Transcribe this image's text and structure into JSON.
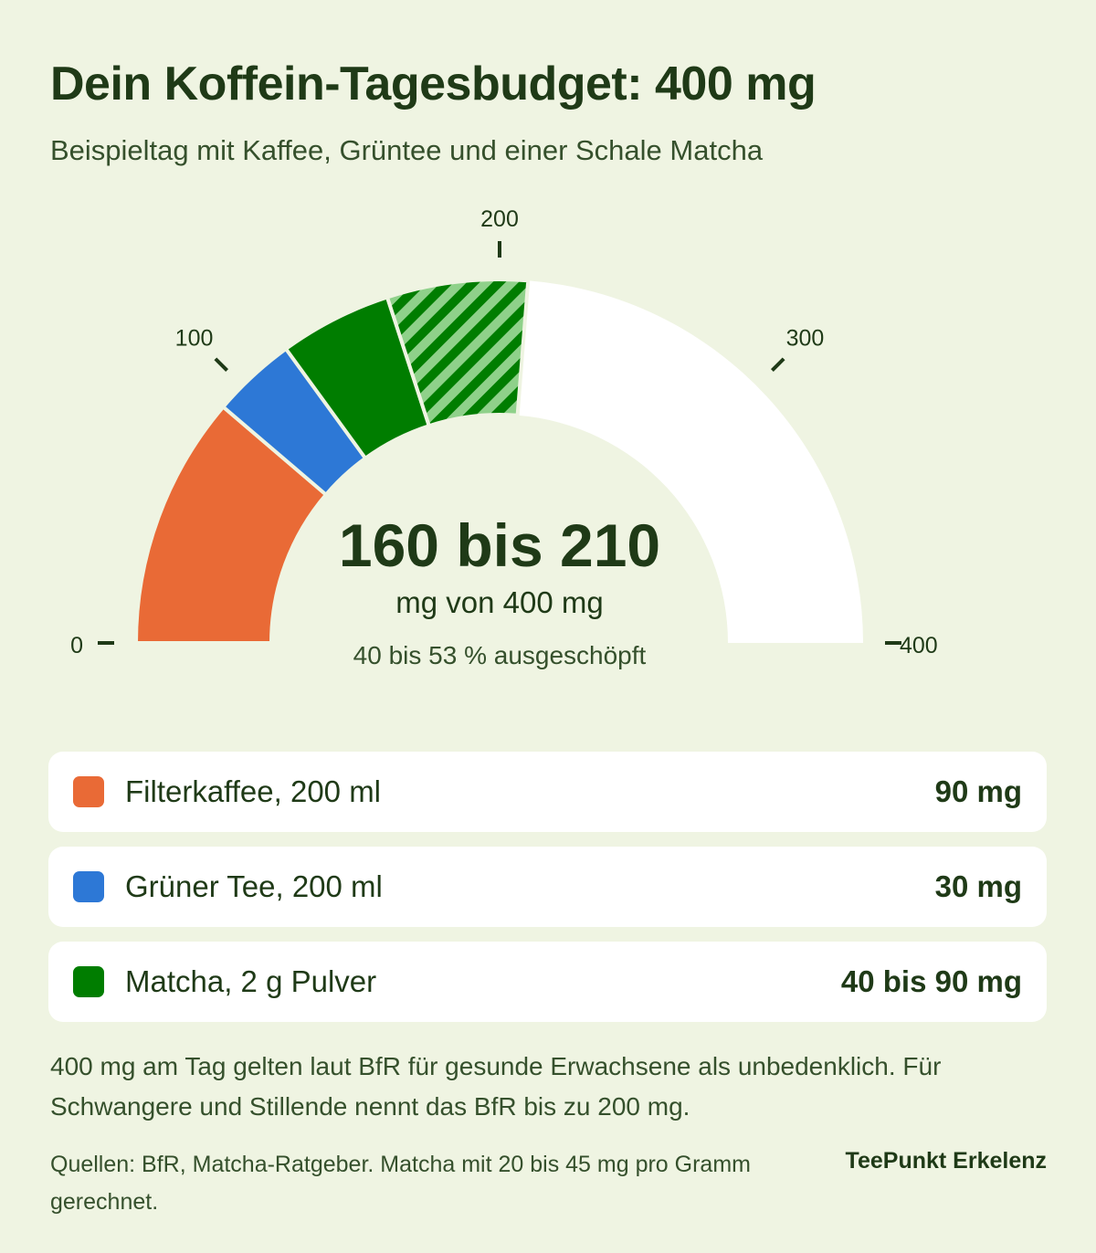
{
  "header": {
    "title": "Dein Koffein-Tagesbudget: 400 mg",
    "subtitle": "Beispieltag mit Kaffee, Grüntee und einer Schale Matcha"
  },
  "chart_data": {
    "type": "gauge",
    "range": [
      0,
      400
    ],
    "ticks": [
      {
        "value": 0,
        "label": "0"
      },
      {
        "value": 100,
        "label": "100"
      },
      {
        "value": 200,
        "label": "200"
      },
      {
        "value": 300,
        "label": "300"
      },
      {
        "value": 400,
        "label": "400"
      }
    ],
    "segments": [
      {
        "name": "Filterkaffee, 200 ml",
        "from": 0,
        "to": 90,
        "color": "#e96a36",
        "pattern": "solid"
      },
      {
        "name": "Grüner Tee, 200 ml",
        "from": 90,
        "to": 120,
        "color": "#2d78d6",
        "pattern": "solid"
      },
      {
        "name": "Matcha, 2 g Pulver",
        "from": 120,
        "to": 160,
        "color": "#007d00",
        "pattern": "solid"
      },
      {
        "name": "Matcha, 2 g Pulver",
        "from": 160,
        "to": 210,
        "color": "#007d00",
        "pattern": "striped"
      }
    ],
    "track_color": "#ffffff",
    "center": {
      "value": "160 bis 210",
      "unit": "mg von 400 mg",
      "percent": "40 bis 53 % ausgeschöpft"
    }
  },
  "legend": [
    {
      "label": "Filterkaffee, 200 ml",
      "value": "90 mg",
      "color": "#e96a36"
    },
    {
      "label": "Grüner Tee, 200 ml",
      "value": "30 mg",
      "color": "#2d78d6"
    },
    {
      "label": "Matcha, 2 g Pulver",
      "value": "40 bis 90 mg",
      "color": "#007d00"
    }
  ],
  "footer": {
    "note": "400 mg am Tag gelten laut BfR für gesunde Erwachsene als unbedenklich. Für Schwangere und Stillende nennt das BfR bis zu 200 mg.",
    "sources": "Quellen: BfR, Matcha-Ratgeber. Matcha mit 20 bis 45 mg pro Gramm gerechnet.",
    "brand": "TeePunkt Erkelenz"
  }
}
